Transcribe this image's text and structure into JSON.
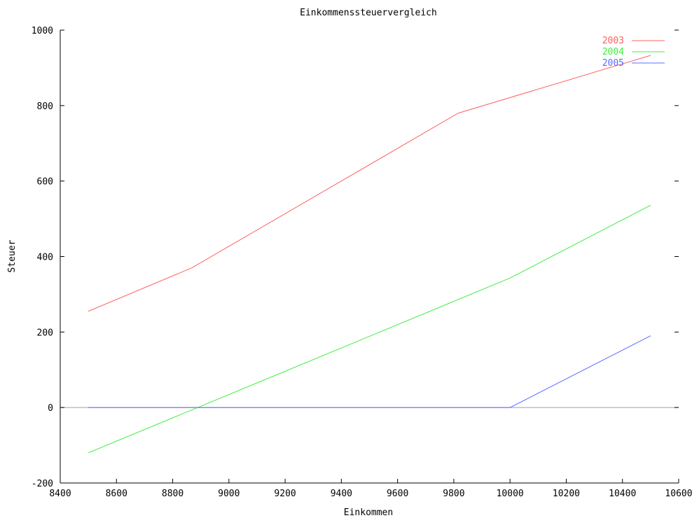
{
  "chart_data": {
    "type": "line",
    "title": "Einkommenssteuervergleich",
    "xlabel": "Einkommen",
    "ylabel": "Steuer",
    "xlim": [
      8400,
      10600
    ],
    "ylim": [
      -200,
      1000
    ],
    "x_ticks": [
      "8400",
      "8600",
      "8800",
      "9000",
      "9200",
      "9400",
      "9600",
      "9800",
      "10000",
      "10200",
      "10400",
      "10600"
    ],
    "y_ticks": [
      "-200",
      "0",
      "200",
      "400",
      "600",
      "800",
      "1000"
    ],
    "grid": false,
    "zero_line": true,
    "legend_position": "top-right",
    "series": [
      {
        "name": "2003",
        "color": "#ff6060",
        "x": [
          8500,
          8868,
          9816,
          10500
        ],
        "y": [
          255,
          370,
          780,
          933
        ]
      },
      {
        "name": "2004",
        "color": "#40ee40",
        "x": [
          8500,
          10000,
          10500
        ],
        "y": [
          -120,
          343,
          536
        ]
      },
      {
        "name": "2005",
        "color": "#5a6cff",
        "x": [
          8500,
          10000,
          10500
        ],
        "y": [
          0,
          0,
          190
        ]
      }
    ]
  }
}
